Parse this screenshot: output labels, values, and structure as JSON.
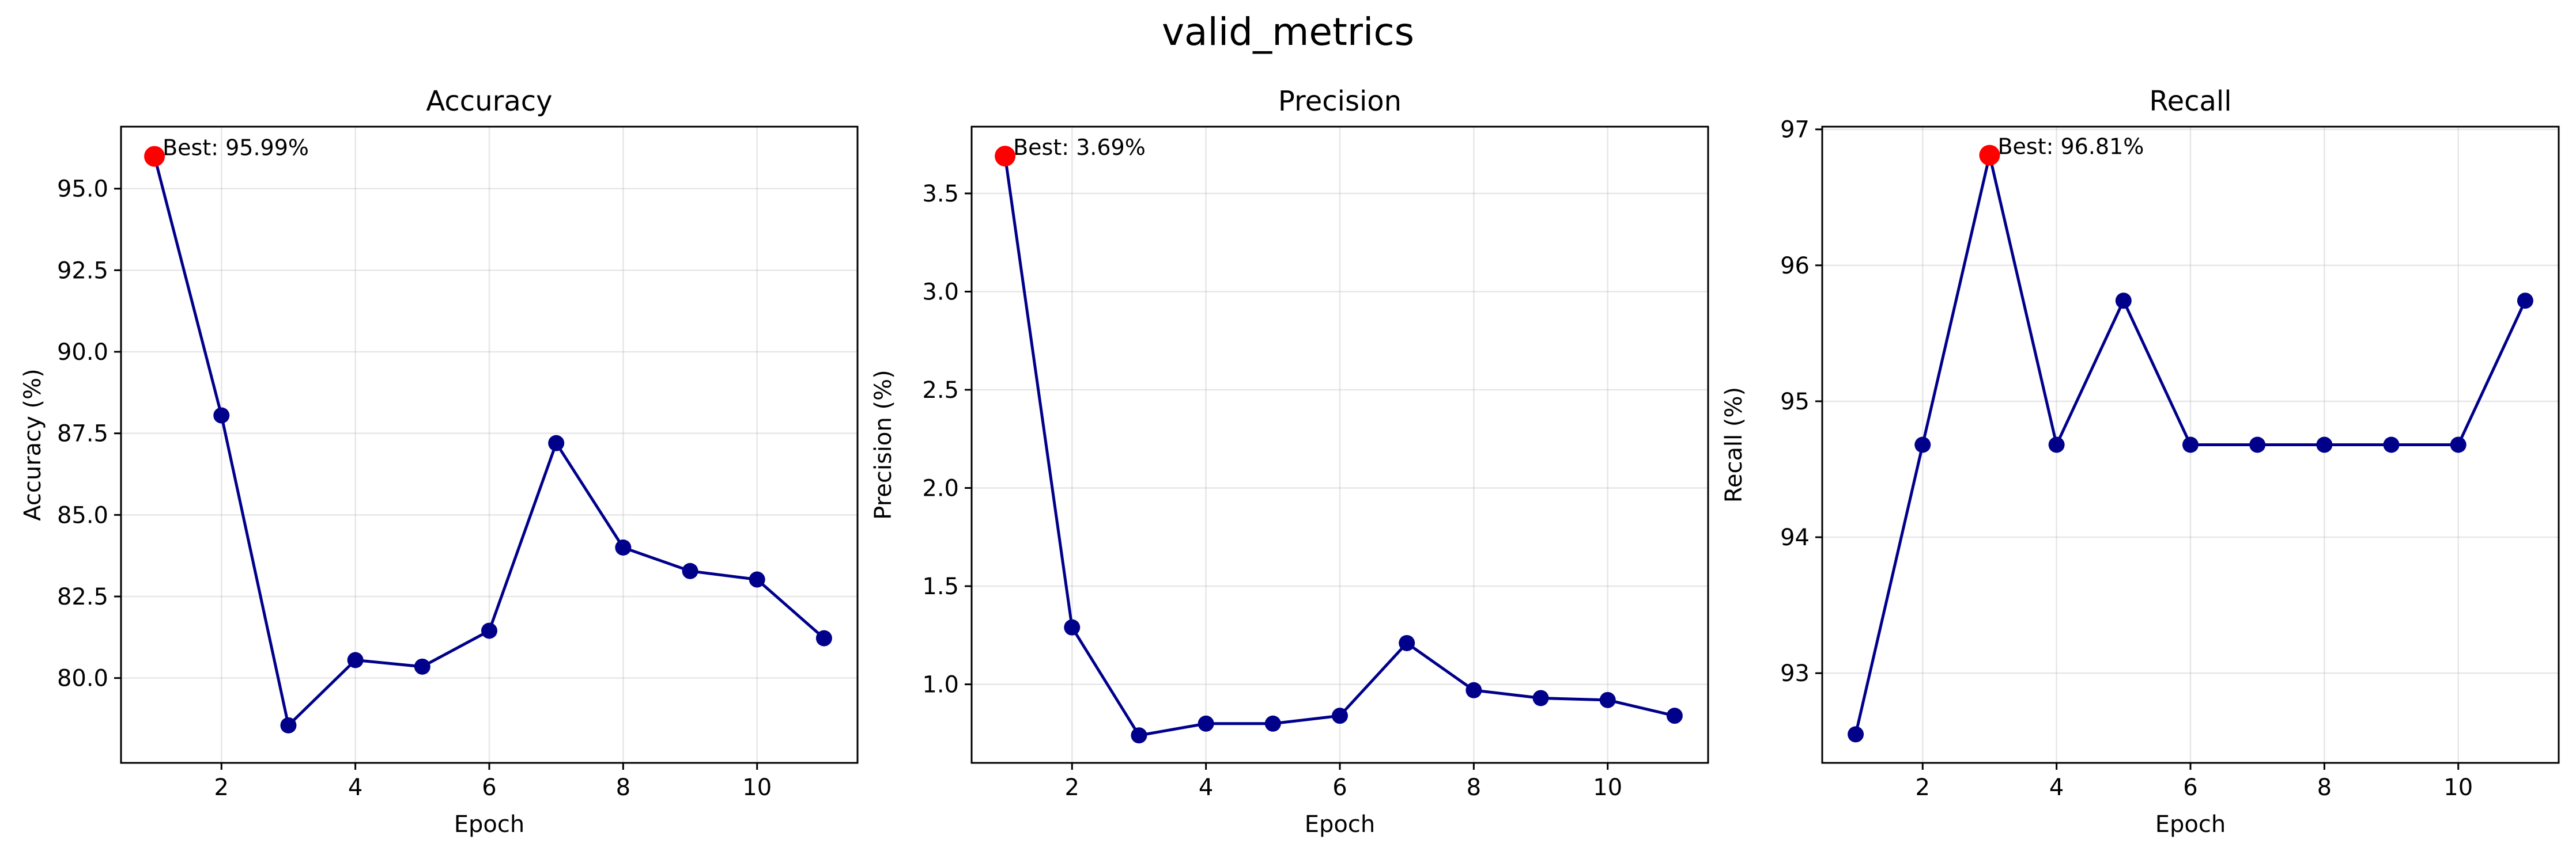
{
  "figure": {
    "suptitle": "valid_metrics"
  },
  "colors": {
    "series": "#00008b",
    "best": "#ff0000"
  },
  "chart_data": [
    {
      "type": "line",
      "title": "Accuracy",
      "xlabel": "Epoch",
      "ylabel": "Accuracy (%)",
      "x": [
        1,
        2,
        3,
        4,
        5,
        6,
        7,
        8,
        9,
        10,
        11
      ],
      "series": [
        {
          "values": [
            95.99,
            88.05,
            78.55,
            80.55,
            80.35,
            81.45,
            87.2,
            84.0,
            83.28,
            83.02,
            81.22
          ]
        }
      ],
      "best": {
        "x": 1,
        "y": 95.99,
        "label": "Best: 95.99%"
      },
      "xlim": [
        0.5,
        11.5
      ],
      "ylim": [
        77.4,
        96.9
      ],
      "xticks": [
        2,
        4,
        6,
        8,
        10
      ],
      "yticks": [
        80.0,
        82.5,
        85.0,
        87.5,
        90.0,
        92.5,
        95.0
      ],
      "ytick_labels": [
        "80.0",
        "82.5",
        "85.0",
        "87.5",
        "90.0",
        "92.5",
        "95.0"
      ],
      "grid": true,
      "legend": "none"
    },
    {
      "type": "line",
      "title": "Precision",
      "xlabel": "Epoch",
      "ylabel": "Precision (%)",
      "x": [
        1,
        2,
        3,
        4,
        5,
        6,
        7,
        8,
        9,
        10,
        11
      ],
      "series": [
        {
          "values": [
            3.69,
            1.29,
            0.74,
            0.8,
            0.8,
            0.84,
            1.21,
            0.97,
            0.93,
            0.92,
            0.84
          ]
        }
      ],
      "best": {
        "x": 1,
        "y": 3.69,
        "label": "Best: 3.69%"
      },
      "xlim": [
        0.5,
        11.5
      ],
      "ylim": [
        0.6,
        3.84
      ],
      "xticks": [
        2,
        4,
        6,
        8,
        10
      ],
      "yticks": [
        1.0,
        1.5,
        2.0,
        2.5,
        3.0,
        3.5
      ],
      "ytick_labels": [
        "1.0",
        "1.5",
        "2.0",
        "2.5",
        "3.0",
        "3.5"
      ],
      "grid": true,
      "legend": "none"
    },
    {
      "type": "line",
      "title": "Recall",
      "xlabel": "Epoch",
      "ylabel": "Recall (%)",
      "x": [
        1,
        2,
        3,
        4,
        5,
        6,
        7,
        8,
        9,
        10,
        11
      ],
      "series": [
        {
          "values": [
            92.55,
            94.68,
            96.81,
            94.68,
            95.74,
            94.68,
            94.68,
            94.68,
            94.68,
            94.68,
            95.74
          ]
        }
      ],
      "best": {
        "x": 3,
        "y": 96.81,
        "label": "Best: 96.81%"
      },
      "xlim": [
        0.5,
        11.5
      ],
      "ylim": [
        92.34,
        97.02
      ],
      "xticks": [
        2,
        4,
        6,
        8,
        10
      ],
      "yticks": [
        93,
        94,
        95,
        96,
        97
      ],
      "ytick_labels": [
        "93",
        "94",
        "95",
        "96",
        "97"
      ],
      "grid": true,
      "legend": "none"
    }
  ]
}
